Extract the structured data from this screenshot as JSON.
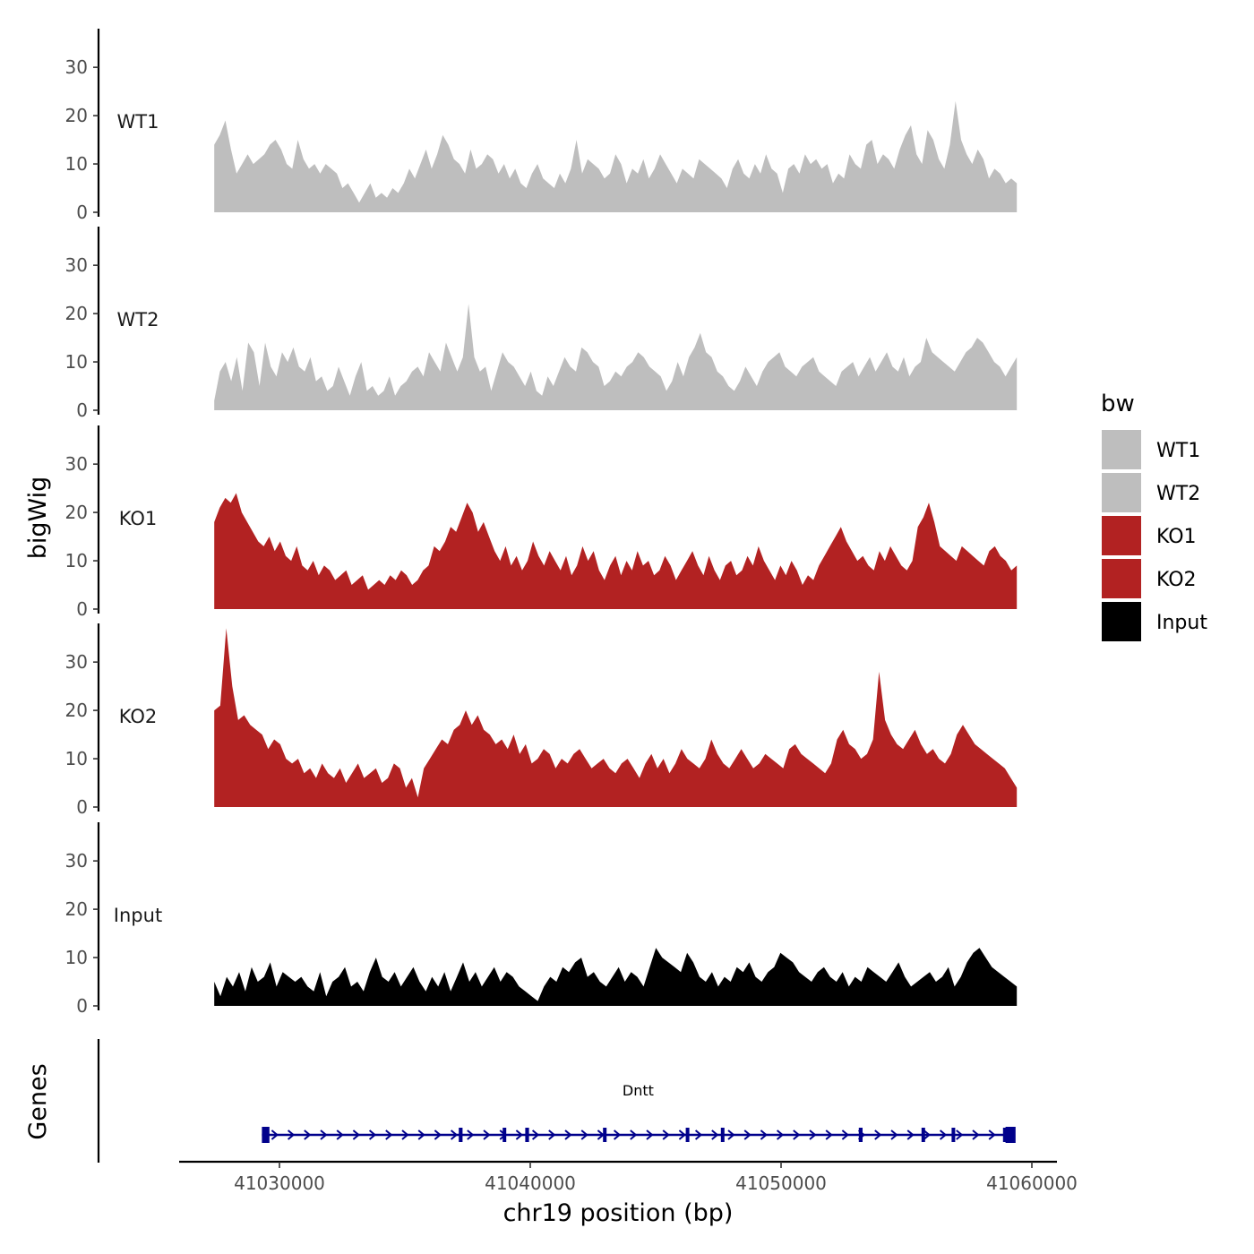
{
  "chart_data": {
    "type": "area",
    "chromosome": "chr19",
    "xlabel": "chr19 position (bp)",
    "ylabel": "bigWig",
    "genes_label": "Genes",
    "x_range": [
      41026000,
      41061000
    ],
    "data_x_range": [
      41027400,
      41059400
    ],
    "x_ticks": [
      41030000,
      41040000,
      41050000,
      41060000
    ],
    "x_tick_labels": [
      "41030000",
      "41040000",
      "41050000",
      "41060000"
    ],
    "y_range": [
      0,
      38
    ],
    "y_ticks": [
      0,
      10,
      20,
      30
    ],
    "y_tick_labels": [
      "0",
      "10",
      "20",
      "30"
    ],
    "legend": {
      "title": "bw",
      "position": "right",
      "entries": [
        {
          "name": "WT1",
          "color": "#bebebe"
        },
        {
          "name": "WT2",
          "color": "#bebebe"
        },
        {
          "name": "KO1",
          "color": "#b22222"
        },
        {
          "name": "KO2",
          "color": "#b22222"
        },
        {
          "name": "Input",
          "color": "#000000"
        }
      ]
    },
    "series": [
      {
        "name": "WT1",
        "color": "#bebebe",
        "values": [
          14,
          16,
          19,
          13,
          8,
          10,
          12,
          10,
          11,
          12,
          14,
          15,
          13,
          10,
          9,
          15,
          11,
          9,
          10,
          8,
          10,
          9,
          8,
          5,
          6,
          4,
          2,
          4,
          6,
          3,
          4,
          3,
          5,
          4,
          6,
          9,
          7,
          10,
          13,
          9,
          12,
          16,
          14,
          11,
          10,
          8,
          13,
          9,
          10,
          12,
          11,
          8,
          10,
          7,
          9,
          6,
          5,
          8,
          10,
          7,
          6,
          5,
          8,
          6,
          9,
          15,
          8,
          11,
          10,
          9,
          7,
          8,
          12,
          10,
          6,
          9,
          8,
          11,
          7,
          9,
          12,
          10,
          8,
          6,
          9,
          8,
          7,
          11,
          10,
          9,
          8,
          7,
          5,
          9,
          11,
          8,
          7,
          10,
          8,
          12,
          9,
          8,
          4,
          9,
          10,
          8,
          12,
          10,
          11,
          9,
          10,
          6,
          8,
          7,
          12,
          10,
          9,
          14,
          15,
          10,
          12,
          11,
          9,
          13,
          16,
          18,
          12,
          10,
          17,
          15,
          11,
          9,
          14,
          23,
          15,
          12,
          10,
          13,
          11,
          7,
          9,
          8,
          6,
          7,
          6
        ]
      },
      {
        "name": "WT2",
        "color": "#bebebe",
        "values": [
          2,
          8,
          10,
          6,
          11,
          4,
          14,
          12,
          5,
          14,
          9,
          7,
          12,
          10,
          13,
          9,
          8,
          11,
          6,
          7,
          4,
          5,
          9,
          6,
          3,
          7,
          10,
          4,
          5,
          3,
          4,
          7,
          3,
          5,
          6,
          8,
          9,
          7,
          12,
          10,
          8,
          14,
          11,
          8,
          11,
          22,
          11,
          8,
          9,
          4,
          8,
          12,
          10,
          9,
          7,
          5,
          8,
          4,
          3,
          7,
          5,
          8,
          11,
          9,
          8,
          13,
          12,
          10,
          9,
          5,
          6,
          8,
          7,
          9,
          10,
          12,
          11,
          9,
          8,
          7,
          4,
          6,
          10,
          7,
          11,
          13,
          16,
          12,
          11,
          8,
          7,
          5,
          4,
          6,
          9,
          7,
          5,
          8,
          10,
          11,
          12,
          9,
          8,
          7,
          9,
          10,
          11,
          8,
          7,
          6,
          5,
          8,
          9,
          10,
          7,
          9,
          11,
          8,
          10,
          12,
          9,
          8,
          11,
          7,
          9,
          10,
          15,
          12,
          11,
          10,
          9,
          8,
          10,
          12,
          13,
          15,
          14,
          12,
          10,
          9,
          7,
          9,
          11
        ]
      },
      {
        "name": "KO1",
        "color": "#b22222",
        "values": [
          18,
          21,
          23,
          22,
          24,
          20,
          18,
          16,
          14,
          13,
          15,
          12,
          14,
          11,
          10,
          13,
          9,
          8,
          10,
          7,
          9,
          8,
          6,
          7,
          8,
          5,
          6,
          7,
          4,
          5,
          6,
          5,
          7,
          6,
          8,
          7,
          5,
          6,
          8,
          9,
          13,
          12,
          14,
          17,
          16,
          19,
          22,
          20,
          16,
          18,
          15,
          12,
          10,
          13,
          9,
          11,
          8,
          10,
          14,
          11,
          9,
          12,
          10,
          8,
          11,
          7,
          9,
          13,
          10,
          12,
          8,
          6,
          9,
          11,
          7,
          10,
          8,
          12,
          9,
          10,
          7,
          8,
          11,
          9,
          6,
          8,
          10,
          12,
          9,
          7,
          11,
          8,
          6,
          9,
          10,
          7,
          8,
          11,
          9,
          13,
          10,
          8,
          6,
          9,
          7,
          10,
          8,
          5,
          7,
          6,
          9,
          11,
          13,
          15,
          17,
          14,
          12,
          10,
          11,
          9,
          8,
          12,
          10,
          13,
          11,
          9,
          8,
          10,
          17,
          19,
          22,
          18,
          13,
          12,
          11,
          10,
          13,
          12,
          11,
          10,
          9,
          12,
          13,
          11,
          10,
          8,
          9
        ]
      },
      {
        "name": "KO2",
        "color": "#b22222",
        "values": [
          20,
          21,
          37,
          25,
          18,
          19,
          17,
          16,
          15,
          12,
          14,
          13,
          10,
          9,
          10,
          7,
          8,
          6,
          9,
          7,
          6,
          8,
          5,
          7,
          9,
          6,
          7,
          8,
          5,
          6,
          9,
          8,
          4,
          6,
          2,
          8,
          10,
          12,
          14,
          13,
          16,
          17,
          20,
          17,
          19,
          16,
          15,
          13,
          14,
          12,
          15,
          11,
          13,
          9,
          10,
          12,
          11,
          8,
          10,
          9,
          11,
          12,
          10,
          8,
          9,
          10,
          8,
          7,
          9,
          10,
          8,
          6,
          9,
          11,
          8,
          10,
          7,
          9,
          12,
          10,
          9,
          8,
          10,
          14,
          11,
          9,
          8,
          10,
          12,
          10,
          8,
          9,
          11,
          10,
          9,
          8,
          12,
          13,
          11,
          10,
          9,
          8,
          7,
          9,
          14,
          16,
          13,
          12,
          10,
          11,
          14,
          28,
          18,
          15,
          13,
          12,
          14,
          16,
          13,
          11,
          12,
          10,
          9,
          11,
          15,
          17,
          15,
          13,
          12,
          11,
          10,
          9,
          8,
          6,
          4
        ]
      },
      {
        "name": "Input",
        "color": "#000000",
        "values": [
          5,
          2,
          6,
          4,
          7,
          3,
          8,
          5,
          6,
          9,
          4,
          7,
          6,
          5,
          6,
          4,
          3,
          7,
          2,
          5,
          6,
          8,
          4,
          5,
          3,
          7,
          10,
          6,
          5,
          7,
          4,
          6,
          8,
          5,
          3,
          6,
          4,
          7,
          3,
          6,
          9,
          5,
          7,
          4,
          6,
          8,
          5,
          7,
          6,
          4,
          3,
          2,
          1,
          4,
          6,
          5,
          8,
          7,
          9,
          10,
          6,
          7,
          5,
          4,
          6,
          8,
          5,
          7,
          6,
          4,
          8,
          12,
          10,
          9,
          8,
          7,
          11,
          9,
          6,
          5,
          7,
          4,
          6,
          5,
          8,
          7,
          9,
          6,
          5,
          7,
          8,
          11,
          10,
          9,
          7,
          6,
          5,
          7,
          8,
          6,
          5,
          7,
          4,
          6,
          5,
          8,
          7,
          6,
          5,
          7,
          9,
          6,
          4,
          5,
          6,
          7,
          5,
          6,
          8,
          4,
          6,
          9,
          11,
          12,
          10,
          8,
          7,
          6,
          5,
          4
        ]
      }
    ],
    "gene_track": {
      "gene_name": "Dntt",
      "strand": "+",
      "color": "#00008b",
      "start": 41029300,
      "end": 41059300,
      "exons": [
        {
          "start": 41029300,
          "end": 41029600
        },
        {
          "start": 41037150,
          "end": 41037300
        },
        {
          "start": 41038900,
          "end": 41039000
        },
        {
          "start": 41039800,
          "end": 41039950
        },
        {
          "start": 41042900,
          "end": 41043000
        },
        {
          "start": 41046200,
          "end": 41046300
        },
        {
          "start": 41047600,
          "end": 41047700
        },
        {
          "start": 41053100,
          "end": 41053250
        },
        {
          "start": 41055600,
          "end": 41055700
        },
        {
          "start": 41056800,
          "end": 41056900
        },
        {
          "start": 41058850,
          "end": 41058950
        },
        {
          "start": 41058950,
          "end": 41059350
        }
      ]
    }
  }
}
